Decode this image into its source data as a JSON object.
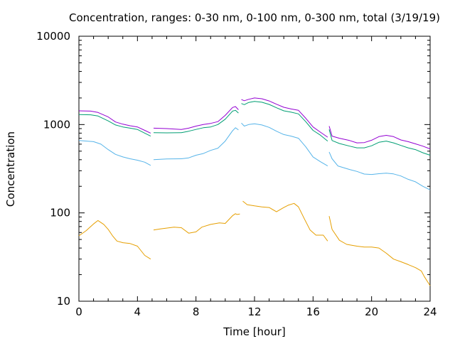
{
  "chart_data": {
    "type": "line",
    "title": "Concentration, ranges: 0-30 nm, 0-100 nm, 0-300 nm, total (3/19/19)",
    "xlabel": "Time [hour]",
    "ylabel": "Concentration",
    "xlim": [
      0,
      24
    ],
    "ylim": [
      10,
      10000
    ],
    "yscale": "log",
    "grid": false,
    "x_ticks": [
      "0",
      "4",
      "8",
      "12",
      "16",
      "20",
      "24"
    ],
    "y_ticks": [
      "10",
      "100",
      "1000",
      "10000"
    ],
    "x_tick_values": [
      0,
      4,
      8,
      12,
      16,
      20,
      24
    ],
    "y_tick_values": [
      10,
      100,
      1000,
      10000
    ],
    "series": [
      {
        "color": "#e69f00",
        "segments": [
          [
            [
              0,
              55
            ],
            [
              0.5,
              63
            ],
            [
              1,
              75
            ],
            [
              1.3,
              82
            ],
            [
              1.7,
              74
            ],
            [
              2,
              65
            ],
            [
              2.3,
              55
            ],
            [
              2.6,
              48
            ],
            [
              3,
              46
            ],
            [
              3.5,
              45
            ],
            [
              4,
              42
            ],
            [
              4.5,
              33
            ],
            [
              4.9,
              30
            ]
          ],
          [
            [
              5.1,
              64
            ],
            [
              5.6,
              66
            ],
            [
              6.5,
              69
            ],
            [
              7,
              68
            ],
            [
              7.5,
              59
            ],
            [
              8,
              61
            ],
            [
              8.4,
              69
            ],
            [
              9,
              74
            ],
            [
              9.6,
              77
            ],
            [
              10,
              76
            ],
            [
              10.5,
              93
            ],
            [
              10.7,
              98
            ],
            [
              10.8,
              96
            ],
            [
              11,
              97
            ]
          ],
          [
            [
              11.2,
              136
            ],
            [
              11.5,
              124
            ],
            [
              12,
              120
            ],
            [
              12.5,
              117
            ],
            [
              13,
              115
            ],
            [
              13.5,
              103
            ],
            [
              14,
              115
            ],
            [
              14.3,
              122
            ],
            [
              14.7,
              128
            ],
            [
              15,
              117
            ],
            [
              15.4,
              86
            ],
            [
              15.8,
              64
            ],
            [
              16.2,
              56
            ],
            [
              16.7,
              56
            ],
            [
              17,
              48
            ]
          ],
          [
            [
              17.1,
              92
            ],
            [
              17.3,
              65
            ],
            [
              17.8,
              49
            ],
            [
              18.3,
              44
            ],
            [
              19,
              42
            ],
            [
              19.5,
              41
            ],
            [
              20,
              41
            ],
            [
              20.5,
              40
            ],
            [
              21,
              35
            ],
            [
              21.5,
              30
            ],
            [
              22,
              28
            ],
            [
              22.5,
              26
            ],
            [
              23,
              24
            ],
            [
              23.4,
              22
            ],
            [
              23.6,
              19
            ],
            [
              24,
              15
            ]
          ]
        ]
      },
      {
        "color": "#56b4e9",
        "segments": [
          [
            [
              0,
              660
            ],
            [
              1,
              640
            ],
            [
              1.5,
              600
            ],
            [
              2,
              520
            ],
            [
              2.5,
              460
            ],
            [
              3,
              430
            ],
            [
              3.5,
              410
            ],
            [
              4,
              395
            ],
            [
              4.5,
              375
            ],
            [
              4.9,
              345
            ]
          ],
          [
            [
              5.1,
              400
            ],
            [
              6,
              408
            ],
            [
              7,
              410
            ],
            [
              7.5,
              420
            ],
            [
              8,
              450
            ],
            [
              8.5,
              470
            ],
            [
              9,
              510
            ],
            [
              9.5,
              540
            ],
            [
              10,
              650
            ],
            [
              10.5,
              850
            ],
            [
              10.7,
              920
            ],
            [
              10.9,
              870
            ]
          ],
          [
            [
              11.1,
              1040
            ],
            [
              11.3,
              960
            ],
            [
              11.6,
              1000
            ],
            [
              12,
              1020
            ],
            [
              12.5,
              990
            ],
            [
              13,
              930
            ],
            [
              13.5,
              840
            ],
            [
              14,
              770
            ],
            [
              14.5,
              740
            ],
            [
              15,
              700
            ],
            [
              15.5,
              560
            ],
            [
              16,
              430
            ],
            [
              16.5,
              380
            ],
            [
              17,
              340
            ]
          ],
          [
            [
              17.1,
              490
            ],
            [
              17.3,
              410
            ],
            [
              17.7,
              340
            ],
            [
              18.5,
              310
            ],
            [
              19,
              295
            ],
            [
              19.5,
              275
            ],
            [
              20,
              272
            ],
            [
              20.5,
              278
            ],
            [
              21,
              282
            ],
            [
              21.5,
              276
            ],
            [
              22,
              262
            ],
            [
              22.5,
              240
            ],
            [
              23,
              225
            ],
            [
              23.5,
              200
            ],
            [
              24,
              182
            ]
          ]
        ]
      },
      {
        "color": "#009e73",
        "segments": [
          [
            [
              0,
              1300
            ],
            [
              0.8,
              1290
            ],
            [
              1.3,
              1250
            ],
            [
              2,
              1100
            ],
            [
              2.5,
              990
            ],
            [
              3,
              940
            ],
            [
              3.5,
              910
            ],
            [
              4,
              880
            ],
            [
              4.5,
              800
            ],
            [
              4.9,
              740
            ]
          ],
          [
            [
              5.1,
              810
            ],
            [
              6,
              805
            ],
            [
              7,
              810
            ],
            [
              7.5,
              840
            ],
            [
              8,
              880
            ],
            [
              8.5,
              920
            ],
            [
              9,
              940
            ],
            [
              9.5,
              1000
            ],
            [
              10,
              1150
            ],
            [
              10.5,
              1420
            ],
            [
              10.7,
              1450
            ],
            [
              10.9,
              1350
            ]
          ],
          [
            [
              11.1,
              1730
            ],
            [
              11.3,
              1680
            ],
            [
              11.6,
              1780
            ],
            [
              12,
              1830
            ],
            [
              12.5,
              1790
            ],
            [
              13,
              1690
            ],
            [
              13.5,
              1550
            ],
            [
              14,
              1430
            ],
            [
              14.5,
              1380
            ],
            [
              15,
              1320
            ],
            [
              15.5,
              1080
            ],
            [
              16,
              860
            ],
            [
              16.5,
              760
            ],
            [
              17,
              650
            ]
          ],
          [
            [
              17.1,
              880
            ],
            [
              17.3,
              660
            ],
            [
              17.8,
              610
            ],
            [
              18.5,
              570
            ],
            [
              19,
              545
            ],
            [
              19.5,
              545
            ],
            [
              20,
              575
            ],
            [
              20.5,
              630
            ],
            [
              21,
              650
            ],
            [
              21.5,
              620
            ],
            [
              22,
              580
            ],
            [
              22.5,
              545
            ],
            [
              23,
              520
            ],
            [
              23.5,
              480
            ],
            [
              24,
              450
            ]
          ]
        ]
      },
      {
        "color": "#9400d3",
        "segments": [
          [
            [
              0,
              1430
            ],
            [
              0.8,
              1420
            ],
            [
              1.3,
              1370
            ],
            [
              2,
              1220
            ],
            [
              2.5,
              1070
            ],
            [
              3,
              1010
            ],
            [
              3.5,
              970
            ],
            [
              4,
              940
            ],
            [
              4.5,
              860
            ],
            [
              4.9,
              800
            ]
          ],
          [
            [
              5.1,
              910
            ],
            [
              6,
              900
            ],
            [
              7,
              880
            ],
            [
              7.5,
              910
            ],
            [
              8,
              960
            ],
            [
              8.5,
              1000
            ],
            [
              9,
              1030
            ],
            [
              9.5,
              1080
            ],
            [
              10,
              1270
            ],
            [
              10.5,
              1560
            ],
            [
              10.7,
              1600
            ],
            [
              10.9,
              1470
            ]
          ],
          [
            [
              11.1,
              1920
            ],
            [
              11.3,
              1860
            ],
            [
              11.6,
              1930
            ],
            [
              12,
              2000
            ],
            [
              12.5,
              1960
            ],
            [
              13,
              1850
            ],
            [
              13.5,
              1700
            ],
            [
              14,
              1570
            ],
            [
              14.5,
              1500
            ],
            [
              15,
              1450
            ],
            [
              15.5,
              1180
            ],
            [
              16,
              940
            ],
            [
              16.5,
              820
            ],
            [
              17,
              720
            ]
          ],
          [
            [
              17.1,
              960
            ],
            [
              17.3,
              740
            ],
            [
              17.8,
              700
            ],
            [
              18.5,
              660
            ],
            [
              19,
              620
            ],
            [
              19.5,
              625
            ],
            [
              20,
              665
            ],
            [
              20.5,
              730
            ],
            [
              21,
              755
            ],
            [
              21.5,
              730
            ],
            [
              22,
              670
            ],
            [
              22.5,
              640
            ],
            [
              23,
              605
            ],
            [
              23.5,
              570
            ],
            [
              24,
              530
            ]
          ]
        ]
      }
    ]
  }
}
